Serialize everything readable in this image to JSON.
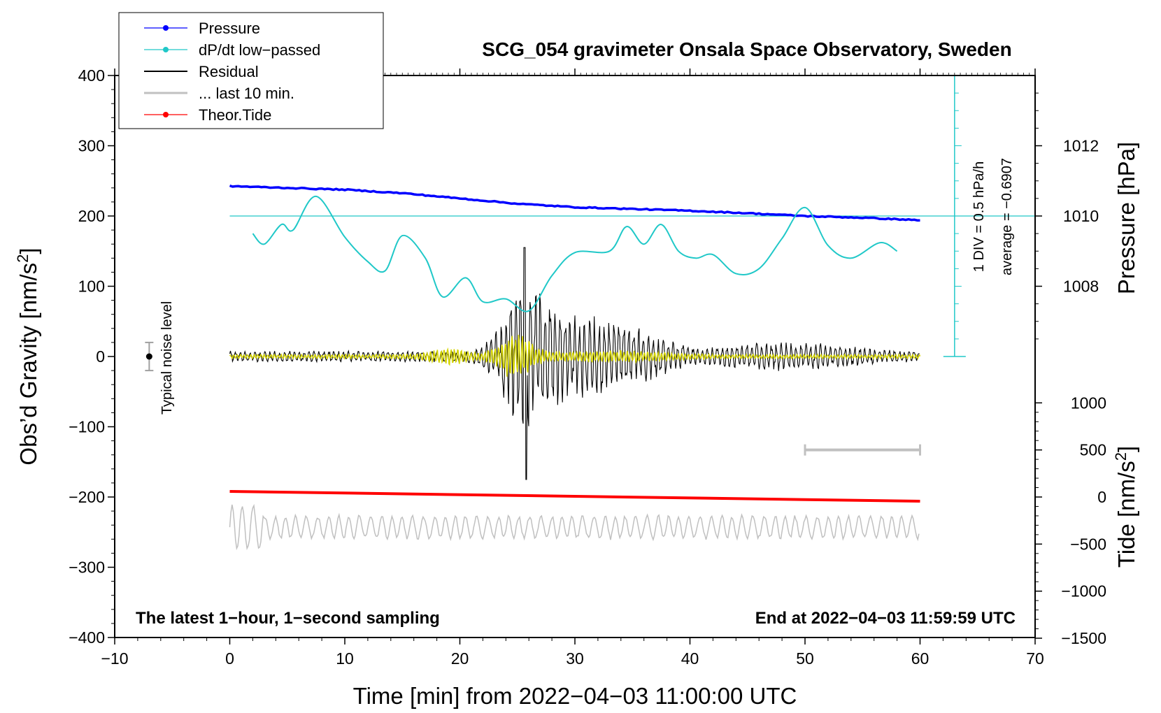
{
  "chart_data": {
    "type": "line",
    "title": "SCG_054 gravimeter Onsala Space Observatory, Sweden",
    "xlabel": "Time [min] from 2022−04−03 11:00:00 UTC",
    "ylabel_left": "Obs’d Gravity [nm/s",
    "ylabel_right_top": "Pressure [hPa]",
    "ylabel_right_bottom_pre": "Tide [nm/s",
    "unit_sup": "2",
    "unit_close": "]",
    "xlim": [
      -10,
      70
    ],
    "ylim_left": [
      -400,
      400
    ],
    "x_ticks": [
      "−10",
      "0",
      "10",
      "20",
      "30",
      "40",
      "50",
      "60",
      "70"
    ],
    "y_ticks_left": [
      "400",
      "300",
      "200",
      "100",
      "0",
      "−100",
      "−200",
      "−300",
      "−400"
    ],
    "pressure_ticks": [
      "1012",
      "1010",
      "1008"
    ],
    "pressure_tick_values": [
      1012,
      1010,
      1008
    ],
    "tide_ticks": [
      "1000",
      "500",
      "0",
      "−500",
      "−1000",
      "−1500"
    ],
    "tide_tick_values": [
      1000,
      500,
      0,
      -500,
      -1000,
      -1500
    ],
    "legend": [
      {
        "label": "Pressure",
        "color": "#0000ff",
        "marker": true
      },
      {
        "label": "dP/dt low−passed",
        "color": "#20c8c8",
        "marker": true
      },
      {
        "label": "Residual",
        "color": "#000000",
        "marker": false
      },
      {
        "label": "... last 10 min.",
        "color": "#c0c0c0",
        "marker": false
      },
      {
        "label": "Theor.Tide",
        "color": "#ff0000",
        "marker": true
      }
    ],
    "colors": {
      "pressure": "#0000ff",
      "dpdt": "#20c8c8",
      "residual": "#000000",
      "last10": "#c0c0c0",
      "tide": "#ff0000",
      "highfreq": "#d4d400",
      "noise_bar": "#a0a0a0"
    },
    "scale_bar_label_1": "1 DIV = 0.5 hPa/h",
    "scale_bar_label_2": "average = −0.6907",
    "noise_label": "Typical noise level",
    "footer_left": "The latest 1−hour, 1−second sampling",
    "footer_right": "End at 2022−04−03 11:59:59 UTC",
    "pressure_series": {
      "x": [
        0,
        5,
        10,
        15,
        20,
        25,
        30,
        35,
        40,
        45,
        50,
        55,
        60
      ],
      "y": [
        1010.85,
        1010.8,
        1010.75,
        1010.65,
        1010.5,
        1010.35,
        1010.25,
        1010.2,
        1010.15,
        1010.08,
        1010.0,
        1009.95,
        1009.88
      ]
    },
    "dpdt_series": {
      "x": [
        2,
        3,
        4.5,
        5.5,
        7.5,
        10,
        12,
        13.5,
        15,
        17,
        18.5,
        20.5,
        22,
        24,
        26,
        28,
        30,
        33,
        34.5,
        36,
        37.5,
        39,
        40.5,
        42,
        44,
        46,
        48,
        50,
        52,
        54,
        56.5,
        58
      ],
      "y": [
        175,
        160,
        188,
        180,
        228,
        170,
        135,
        122,
        172,
        140,
        85,
        112,
        78,
        82,
        65,
        115,
        148,
        150,
        185,
        160,
        188,
        150,
        140,
        145,
        118,
        125,
        168,
        212,
        158,
        140,
        162,
        150
      ]
    },
    "pressure_reference_level": 200,
    "tide_series": {
      "x": [
        0,
        60
      ],
      "y": [
        -192,
        -206
      ]
    },
    "noise_point": {
      "x": -7,
      "y": 0,
      "err": 20
    },
    "scale_bar": {
      "x": [
        50,
        60
      ],
      "y": -133
    }
  }
}
